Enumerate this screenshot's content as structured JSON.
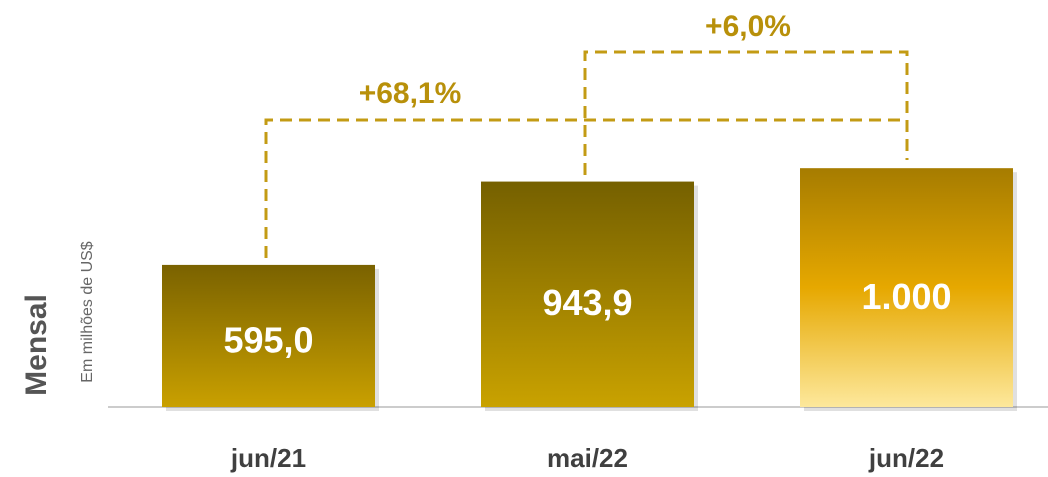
{
  "chart_data": {
    "type": "bar",
    "y_label": "Mensal",
    "y_sublabel": "Em milhões de US$",
    "categories": [
      "jun/21",
      "mai/22",
      "jun/22"
    ],
    "values": [
      595.0,
      943.9,
      1000
    ],
    "value_labels": [
      "595,0",
      "943,9",
      "1.000"
    ],
    "annotations": [
      "+68,1%",
      "+6,0%"
    ],
    "ylim": [
      0,
      1700
    ]
  }
}
